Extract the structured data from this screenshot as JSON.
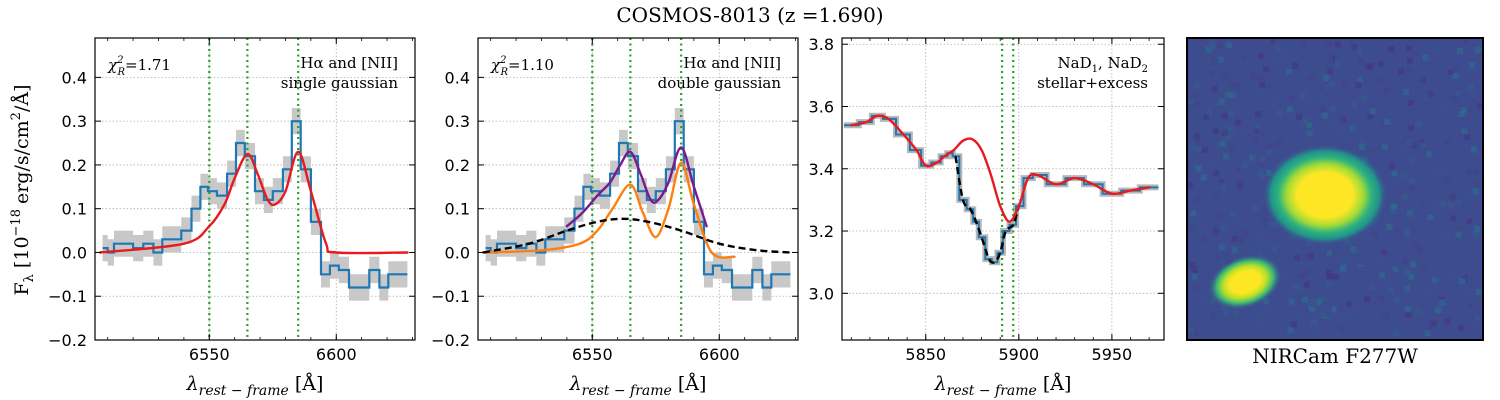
{
  "figure_title": "COSMOS-8013 (z =1.690)",
  "y_axis_label": "F",
  "y_axis_label_sub": "λ",
  "y_axis_label_units": "[10",
  "y_axis_label_exp": "−18",
  "y_axis_label_units2": "erg/s/cm",
  "y_axis_label_exp2": "2",
  "y_axis_label_units3": "/Å]",
  "x_axis_label_main": "λ",
  "x_axis_label_sub": "rest − frame",
  "x_axis_label_units": "[Å]",
  "image_panel": {
    "caption": "NIRCam F277W"
  },
  "chart_data": [
    {
      "type": "line",
      "panel": "Halpha-single",
      "chi2_prefix": "χ",
      "chi2_label": "=1.71",
      "annotation": [
        "Hα and [NII]",
        "single gaussian"
      ],
      "xlim": [
        6505,
        6631
      ],
      "ylim": [
        -0.2,
        0.49
      ],
      "xticks": [
        6550,
        6600
      ],
      "yticks": [
        -0.2,
        -0.1,
        0.0,
        0.1,
        0.2,
        0.3,
        0.4
      ],
      "ytick_labels": [
        "−0.2",
        "−0.1",
        "0.0",
        "0.1",
        "0.2",
        "0.3",
        "0.4"
      ],
      "line_markers": [
        6550,
        6565,
        6585
      ],
      "series": [
        {
          "name": "observed spectrum (step)",
          "color": "#1f77b4",
          "x": [
            6509,
            6511,
            6514,
            6518,
            6522,
            6526,
            6530,
            6533,
            6537,
            6541,
            6545,
            6548,
            6551,
            6555,
            6559,
            6562,
            6566,
            6570,
            6573,
            6577,
            6581,
            6584,
            6588,
            6592,
            6596,
            6599,
            6603,
            6607,
            6611,
            6615,
            6619,
            6622,
            6626
          ],
          "y": [
            0.01,
            0.0,
            0.02,
            0.02,
            0.01,
            0.02,
            0.0,
            0.03,
            0.03,
            0.05,
            0.1,
            0.15,
            0.14,
            0.13,
            0.18,
            0.25,
            0.22,
            0.14,
            0.12,
            0.14,
            0.19,
            0.3,
            0.19,
            0.07,
            -0.05,
            -0.03,
            -0.04,
            -0.08,
            -0.08,
            -0.04,
            -0.08,
            -0.05,
            -0.05
          ]
        },
        {
          "name": "single gaussian model",
          "color": "#e8191f",
          "x": [
            6507,
            6540,
            6550,
            6556,
            6560,
            6565,
            6569,
            6573,
            6576,
            6580,
            6585,
            6590,
            6596,
            6600,
            6628
          ],
          "y": [
            0.0,
            0.02,
            0.06,
            0.11,
            0.17,
            0.225,
            0.18,
            0.12,
            0.11,
            0.14,
            0.23,
            0.14,
            0.02,
            0.0,
            0.0
          ]
        }
      ]
    },
    {
      "type": "line",
      "panel": "Halpha-double",
      "chi2_prefix": "χ",
      "chi2_label": "=1.10",
      "annotation": [
        "Hα and [NII]",
        "double gaussian"
      ],
      "xlim": [
        6505,
        6631
      ],
      "ylim": [
        -0.2,
        0.49
      ],
      "xticks": [
        6550,
        6600
      ],
      "yticks": [
        -0.2,
        -0.1,
        0.0,
        0.1,
        0.2,
        0.3,
        0.4
      ],
      "ytick_labels": [
        "−0.2",
        "−0.1",
        "0.0",
        "0.1",
        "0.2",
        "0.3",
        "0.4"
      ],
      "line_markers": [
        6550,
        6565,
        6585
      ],
      "series": [
        {
          "name": "observed spectrum (step)",
          "color": "#1f77b4",
          "x": [
            6509,
            6511,
            6514,
            6518,
            6522,
            6526,
            6530,
            6533,
            6537,
            6541,
            6545,
            6548,
            6551,
            6555,
            6559,
            6562,
            6566,
            6570,
            6573,
            6577,
            6581,
            6584,
            6588,
            6592,
            6596,
            6599,
            6603,
            6607,
            6611,
            6615,
            6619,
            6622,
            6626
          ],
          "y": [
            0.01,
            0.0,
            0.02,
            0.02,
            0.01,
            0.02,
            0.0,
            0.03,
            0.03,
            0.05,
            0.1,
            0.15,
            0.14,
            0.13,
            0.18,
            0.25,
            0.22,
            0.14,
            0.12,
            0.14,
            0.19,
            0.3,
            0.19,
            0.07,
            -0.05,
            -0.03,
            -0.04,
            -0.08,
            -0.08,
            -0.04,
            -0.08,
            -0.05,
            -0.05
          ]
        },
        {
          "name": "total model",
          "color": "#7b1a8e",
          "x": [
            6540,
            6546,
            6552,
            6557,
            6561,
            6565,
            6569,
            6573,
            6576,
            6580,
            6585,
            6590,
            6595
          ],
          "y": [
            0.06,
            0.09,
            0.13,
            0.16,
            0.2,
            0.23,
            0.18,
            0.12,
            0.12,
            0.16,
            0.24,
            0.15,
            0.06
          ]
        },
        {
          "name": "narrow component",
          "color": "#ff7f0e",
          "x": [
            6507,
            6530,
            6545,
            6552,
            6558,
            6565,
            6570,
            6575,
            6580,
            6585,
            6590,
            6597,
            6606
          ],
          "y": [
            0.0,
            0.005,
            0.02,
            0.05,
            0.1,
            0.155,
            0.09,
            0.035,
            0.1,
            0.205,
            0.11,
            0.0,
            -0.01
          ]
        },
        {
          "name": "broad component",
          "color": "#000000",
          "dashed": true,
          "x": [
            6507,
            6525,
            6540,
            6552,
            6562,
            6572,
            6585,
            6600,
            6615,
            6628
          ],
          "y": [
            0.0,
            0.02,
            0.05,
            0.07,
            0.077,
            0.07,
            0.05,
            0.02,
            0.005,
            0.0
          ]
        }
      ]
    },
    {
      "type": "line",
      "panel": "NaD",
      "annotation": [
        "NaD",
        "stellar+excess"
      ],
      "annotation_line1_sub1": "1",
      "annotation_line1_mid": ", NaD",
      "annotation_line1_sub2": "2",
      "xlim": [
        5805,
        5978
      ],
      "ylim": [
        2.85,
        3.82
      ],
      "xticks": [
        5850,
        5900,
        5950
      ],
      "yticks": [
        3.0,
        3.2,
        3.4,
        3.6,
        3.8
      ],
      "ytick_labels": [
        "3.0",
        "3.2",
        "3.4",
        "3.6",
        "3.8"
      ],
      "line_markers": [
        5891,
        5897
      ],
      "series": [
        {
          "name": "observed spectrum",
          "color": "#1f77b4",
          "x": [
            5810,
            5818,
            5824,
            5830,
            5838,
            5845,
            5850,
            5856,
            5860,
            5863,
            5866,
            5870,
            5874,
            5877,
            5880,
            5884,
            5887,
            5890,
            5893,
            5897,
            5900,
            5905,
            5910,
            5920,
            5930,
            5940,
            5950,
            5960,
            5970
          ],
          "y": [
            3.54,
            3.55,
            3.57,
            3.56,
            3.51,
            3.46,
            3.41,
            3.42,
            3.44,
            3.45,
            3.44,
            3.3,
            3.27,
            3.23,
            3.18,
            3.11,
            3.1,
            3.13,
            3.2,
            3.22,
            3.28,
            3.37,
            3.38,
            3.35,
            3.37,
            3.35,
            3.32,
            3.33,
            3.34
          ]
        },
        {
          "name": "stellar model",
          "color": "#000000",
          "dashed": true,
          "x": [
            5866,
            5870,
            5874,
            5877,
            5880,
            5884,
            5887,
            5890,
            5893,
            5897,
            5900
          ],
          "y": [
            3.44,
            3.3,
            3.27,
            3.23,
            3.18,
            3.11,
            3.1,
            3.13,
            3.2,
            3.22,
            3.28
          ]
        },
        {
          "name": "stellar+excess model",
          "color": "#e8191f",
          "x": [
            5810,
            5818,
            5824,
            5830,
            5838,
            5845,
            5850,
            5856,
            5860,
            5865,
            5870,
            5875,
            5880,
            5885,
            5890,
            5895,
            5900,
            5905,
            5910,
            5920,
            5930,
            5940,
            5950,
            5960,
            5970
          ],
          "y": [
            3.54,
            3.55,
            3.57,
            3.56,
            3.51,
            3.46,
            3.41,
            3.42,
            3.44,
            3.46,
            3.49,
            3.495,
            3.46,
            3.38,
            3.28,
            3.23,
            3.28,
            3.37,
            3.38,
            3.35,
            3.37,
            3.35,
            3.32,
            3.33,
            3.34
          ]
        }
      ]
    }
  ]
}
